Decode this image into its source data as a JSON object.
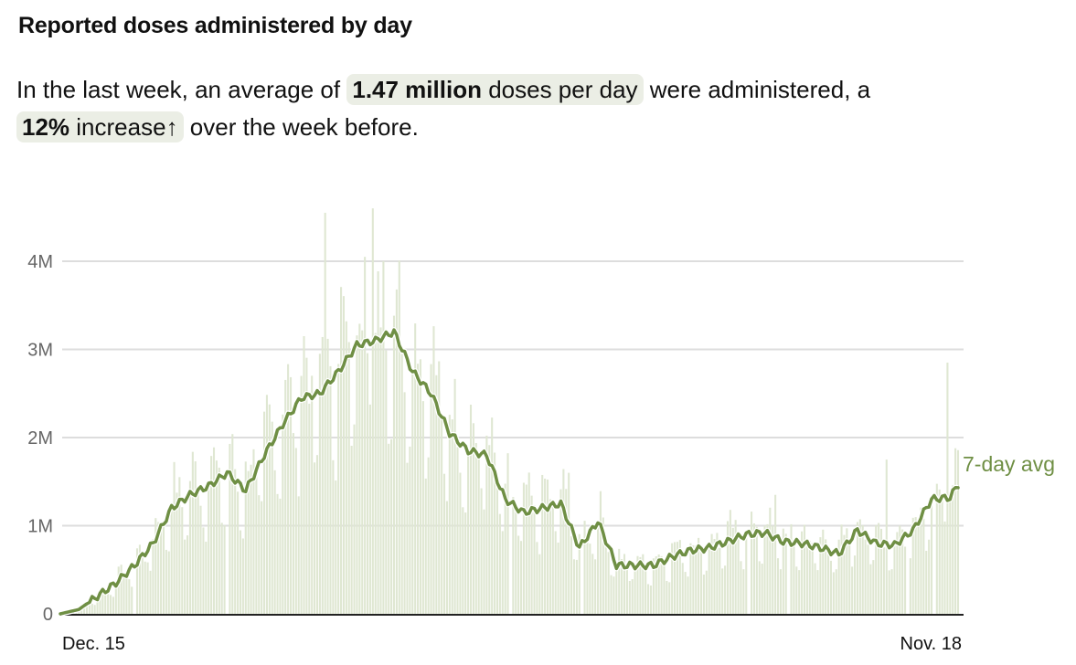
{
  "header": {
    "title": "Reported doses administered by day"
  },
  "summary": {
    "prefix": "In the last week, an average of",
    "avg_value": "1.47 million",
    "avg_unit": "doses per day",
    "middle": "were administered, a",
    "change_value": "12%",
    "change_word": "increase",
    "change_arrow": "↑",
    "suffix": "over the week before."
  },
  "colors": {
    "bar": "#dfe7d2",
    "line": "#6f8f44",
    "grid": "#dddddd",
    "pill": "#ebeee5",
    "axis": "#222222"
  },
  "chart_data": {
    "type": "bar",
    "title": "Reported doses administered by day",
    "xlabel": "",
    "ylabel": "",
    "ylim": [
      0,
      4.6
    ],
    "yunit": "millions",
    "y_ticks": [
      {
        "value": 0,
        "label": "0"
      },
      {
        "value": 1,
        "label": "1M"
      },
      {
        "value": 2,
        "label": "2M"
      },
      {
        "value": 3,
        "label": "3M"
      },
      {
        "value": 4,
        "label": "4M"
      }
    ],
    "x_ticks": [
      {
        "day": 0,
        "label": "Dec. 15"
      },
      {
        "day": 339,
        "label": "Nov. 18"
      }
    ],
    "x_range_days": [
      0,
      339
    ],
    "grid": true,
    "series": [
      {
        "name": "7-day avg",
        "type": "line",
        "legend_placement": "right-end",
        "sample_every_days": 7,
        "values": [
          0.0,
          0.05,
          0.2,
          0.35,
          0.55,
          0.8,
          1.2,
          1.35,
          1.45,
          1.6,
          1.4,
          1.8,
          2.15,
          2.45,
          2.5,
          2.75,
          3.05,
          3.1,
          3.2,
          2.75,
          2.5,
          2.05,
          1.85,
          1.8,
          1.3,
          1.15,
          1.2,
          1.25,
          0.75,
          1.05,
          0.55,
          0.55,
          0.55,
          0.65,
          0.72,
          0.75,
          0.82,
          0.9,
          0.92,
          0.82,
          0.8,
          0.75,
          0.68,
          0.95,
          0.8,
          0.78,
          0.95,
          1.3,
          1.32
        ],
        "final_value": 1.47
      },
      {
        "name": "Daily doses",
        "type": "bar",
        "note": "daily bars vary around the 7-day average with weekly pattern",
        "weekly_pattern": [
          1.15,
          1.25,
          1.2,
          1.1,
          0.95,
          0.7,
          0.65
        ],
        "spikes": [
          {
            "day": 100,
            "value": 4.55
          },
          {
            "day": 118,
            "value": 4.6
          },
          {
            "day": 115,
            "value": 4.05
          },
          {
            "day": 122,
            "value": 4.0
          },
          {
            "day": 335,
            "value": 2.85
          },
          {
            "day": 192,
            "value": 1.6
          },
          {
            "day": 312,
            "value": 1.75
          },
          {
            "day": 270,
            "value": 1.35
          }
        ],
        "gaps": [
          28,
          63,
          170,
          197,
          260,
          275,
          320,
          330
        ]
      }
    ]
  }
}
